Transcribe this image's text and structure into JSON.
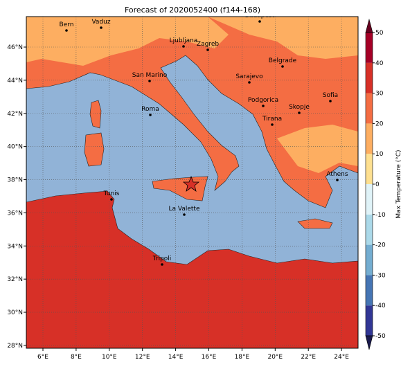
{
  "title": "Forecast of 2020052400 (f144-168)",
  "lon_ticks": [
    {
      "value": 6,
      "label": "6°E"
    },
    {
      "value": 8,
      "label": "8°E"
    },
    {
      "value": 10,
      "label": "10°E"
    },
    {
      "value": 12,
      "label": "12°E"
    },
    {
      "value": 14,
      "label": "14°E"
    },
    {
      "value": 16,
      "label": "16°E"
    },
    {
      "value": 18,
      "label": "18°E"
    },
    {
      "value": 20,
      "label": "20°E"
    },
    {
      "value": 22,
      "label": "22°E"
    },
    {
      "value": 24,
      "label": "24°E"
    }
  ],
  "lat_ticks": [
    {
      "value": 28,
      "label": "28°N"
    },
    {
      "value": 30,
      "label": "30°N"
    },
    {
      "value": 32,
      "label": "32°N"
    },
    {
      "value": 34,
      "label": "34°N"
    },
    {
      "value": 36,
      "label": "36°N"
    },
    {
      "value": 38,
      "label": "38°N"
    },
    {
      "value": 40,
      "label": "40°N"
    },
    {
      "value": 42,
      "label": "42°N"
    },
    {
      "value": 44,
      "label": "44°N"
    },
    {
      "value": 46,
      "label": "46°N"
    }
  ],
  "cities": [
    "Bern",
    "Vaduz",
    "Budapest",
    "Ljubljana",
    "Zagreb",
    "San Marino",
    "Belgrade",
    "Sarajevo",
    "Podgorica",
    "Sofia",
    "Skopje",
    "Roma",
    "Tirana",
    "Athens",
    "Tunis",
    "La Valette",
    "Tripoli"
  ],
  "colorbar": {
    "label": "Max Temperature (°C)",
    "ticks": [
      -50,
      -40,
      -30,
      -20,
      -10,
      0,
      10,
      20,
      30,
      40,
      50
    ],
    "colors": [
      "#313695",
      "#4575b4",
      "#74add1",
      "#abd9e9",
      "#e0f3f8",
      "#fee090",
      "#fdae61",
      "#f46d43",
      "#d73027",
      "#a50026"
    ]
  }
}
